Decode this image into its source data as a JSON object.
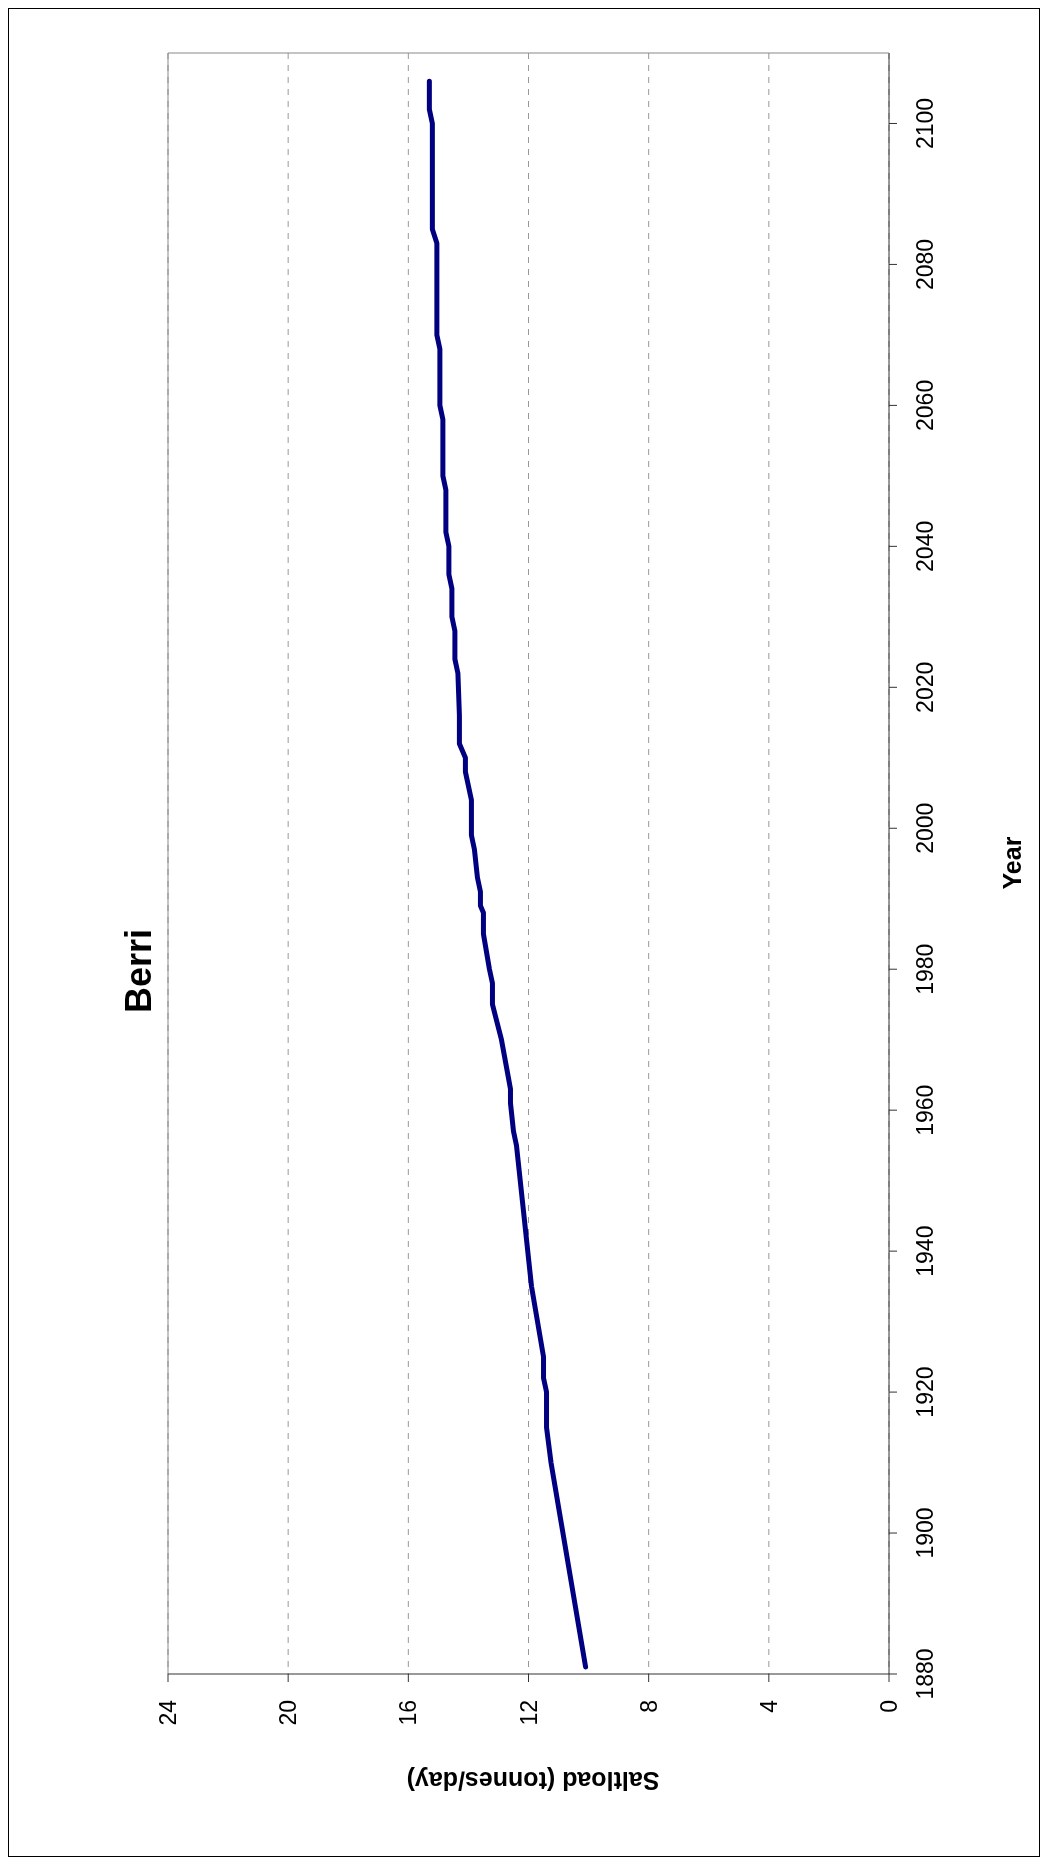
{
  "chart_data": {
    "type": "line",
    "title": "Berri",
    "xlabel": "Saltload (tonnes/day)",
    "ylabel": "Year",
    "x": [
      10.1,
      11.25,
      11.4,
      11.4,
      11.5,
      11.5,
      11.9,
      12.4,
      12.5,
      12.6,
      12.6,
      12.9,
      13.2,
      13.2,
      13.3,
      13.5,
      13.5,
      13.6,
      13.6,
      13.7,
      13.8,
      13.9,
      13.9,
      14.1,
      14.1,
      14.3,
      14.3,
      14.35,
      14.45,
      14.45,
      14.55,
      14.55,
      14.65,
      14.65,
      14.75,
      14.75,
      14.85,
      14.85,
      14.95,
      14.95,
      15.05,
      15.05,
      15.2,
      15.2,
      15.3,
      15.3
    ],
    "series": [
      {
        "color": "#000080",
        "values": [
          1881,
          1910,
          1915,
          1920,
          1922,
          1925,
          1935,
          1955,
          1957,
          1961,
          1963,
          1970,
          1975,
          1978,
          1980,
          1985,
          1988,
          1989,
          1991,
          1993,
          1997,
          1999,
          2004,
          2008,
          2010,
          2012,
          2016,
          2022,
          2024,
          2028,
          2030,
          2034,
          2036,
          2040,
          2042,
          2048,
          2050,
          2058,
          2060,
          2068,
          2070,
          2083,
          2085,
          2100,
          2102,
          2106
        ]
      }
    ],
    "xlim": [
      24,
      0
    ],
    "xticks": [
      24,
      20,
      16,
      12,
      8,
      4,
      0
    ],
    "ylim": [
      1880,
      2110
    ],
    "yticks": [
      1880,
      1900,
      1920,
      1940,
      1960,
      1980,
      2000,
      2020,
      2040,
      2060,
      2080,
      2100
    ],
    "grid": "x",
    "marker": "none",
    "line_style": "solid",
    "legend": false
  }
}
